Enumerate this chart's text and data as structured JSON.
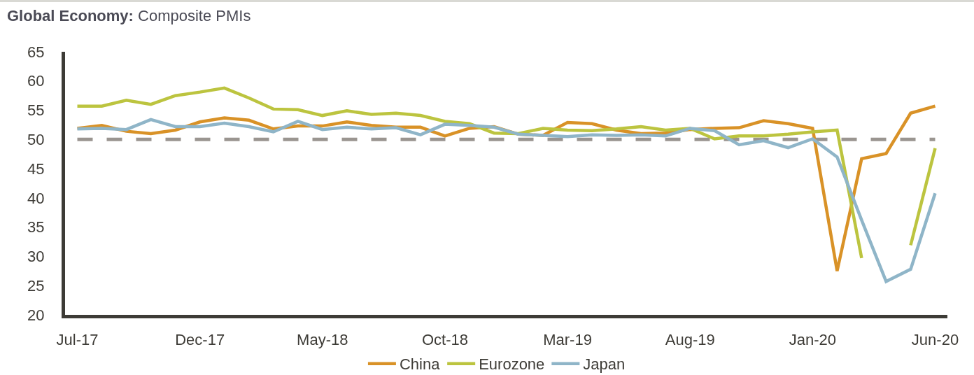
{
  "chart_data": {
    "type": "line",
    "title": "Global Economy: Composite PMIs",
    "categories": [
      "Jul-17",
      null,
      null,
      null,
      null,
      "Dec-17",
      null,
      null,
      null,
      null,
      "May-18",
      null,
      null,
      null,
      null,
      "Oct-18",
      null,
      null,
      null,
      null,
      "Mar-19",
      null,
      null,
      null,
      null,
      "Aug-19",
      null,
      null,
      null,
      null,
      "Jan-20",
      null,
      null,
      null,
      null,
      "Jun-20"
    ],
    "series": [
      {
        "name": "China",
        "color": "#d99227",
        "values": [
          51.9,
          52.4,
          51.4,
          51.0,
          51.6,
          53.0,
          53.7,
          53.3,
          51.8,
          52.3,
          52.3,
          53.0,
          52.4,
          52.1,
          52.1,
          50.6,
          51.9,
          52.2,
          50.9,
          50.7,
          52.9,
          52.7,
          51.6,
          51.0,
          51.1,
          51.7,
          51.9,
          52.0,
          53.2,
          52.7,
          51.9,
          27.5,
          46.7,
          47.6,
          54.5,
          55.7
        ]
      },
      {
        "name": "Eurozone",
        "color": "#bcc43f",
        "values": [
          55.7,
          55.7,
          56.7,
          56.0,
          57.5,
          58.1,
          58.8,
          57.1,
          55.2,
          55.1,
          54.1,
          54.9,
          54.3,
          54.5,
          54.1,
          53.1,
          52.7,
          51.1,
          51.0,
          51.9,
          51.6,
          51.5,
          51.8,
          52.2,
          51.6,
          51.9,
          50.1,
          50.6,
          50.6,
          50.9,
          51.3,
          51.6,
          29.7,
          null,
          31.9,
          48.5
        ]
      },
      {
        "name": "Japan",
        "color": "#8fb5c8",
        "values": [
          51.8,
          51.9,
          51.7,
          53.4,
          52.2,
          52.2,
          52.8,
          52.2,
          51.3,
          53.1,
          51.7,
          52.1,
          51.8,
          52.0,
          50.8,
          52.6,
          52.4,
          52.1,
          50.9,
          50.7,
          50.5,
          50.8,
          50.7,
          50.8,
          50.6,
          51.9,
          51.5,
          49.1,
          49.8,
          48.6,
          50.1,
          47.0,
          36.2,
          25.7,
          27.8,
          40.8
        ]
      }
    ],
    "ylim": [
      20,
      65
    ],
    "yticks": [
      20,
      25,
      30,
      35,
      40,
      45,
      50,
      55,
      60,
      65
    ],
    "ref_lines": [
      {
        "axis": "y",
        "value": 50,
        "color": "#9a9590",
        "line_style": "dashed"
      }
    ],
    "legend": "bottom"
  }
}
